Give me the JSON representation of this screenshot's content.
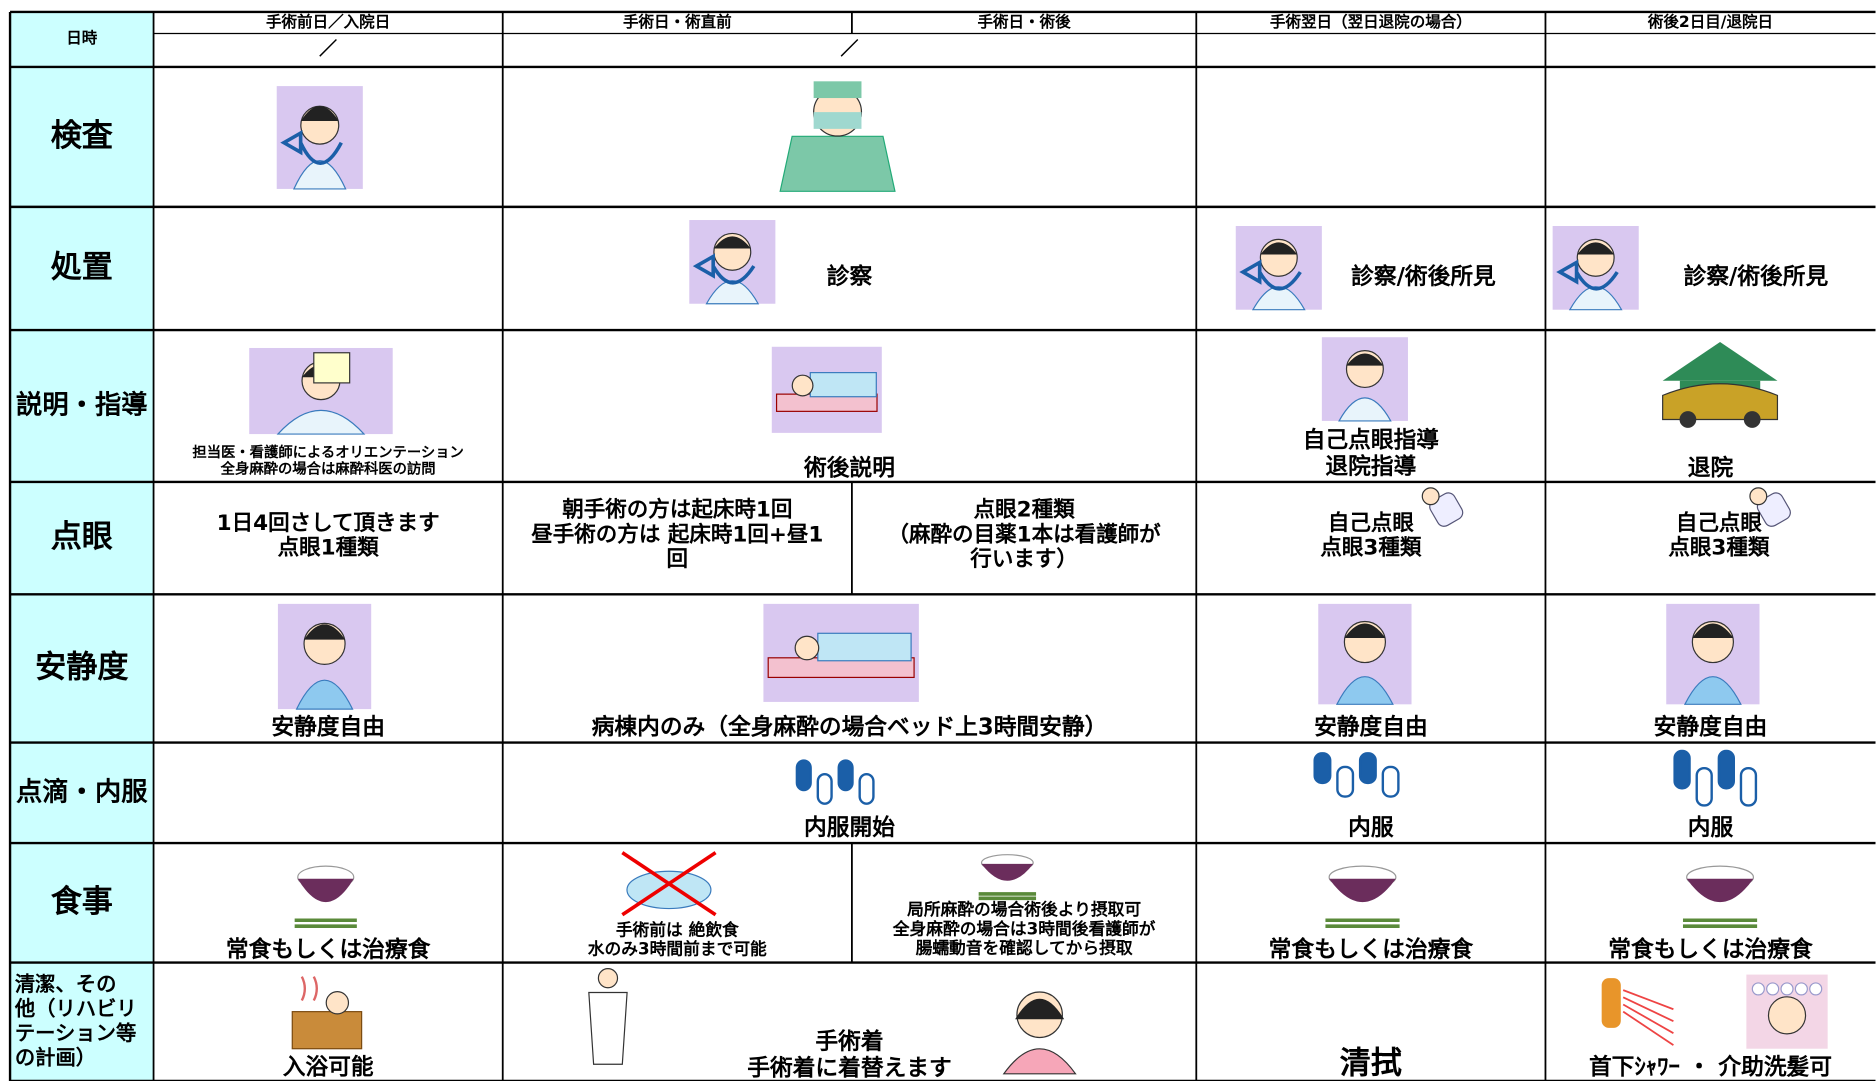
{
  "header": {
    "label": "日時",
    "columns": [
      "手術前日／入院日",
      "手術日・術直前",
      "手術日・術後",
      "手術翌日（翌日退院の場合）",
      "術後2日目/退院日"
    ],
    "dates": [
      "／",
      "／"
    ]
  },
  "rows": [
    {
      "label": [
        "検査"
      ]
    },
    {
      "label": [
        "処置"
      ],
      "cells": [
        [
          "診察"
        ],
        [
          "診察/術後所見"
        ],
        [
          "診察/術後所見"
        ]
      ]
    },
    {
      "label": [
        "説明・指導"
      ],
      "cells": [
        [
          "担当医・看護師によるオリエンテーション",
          "全身麻酔の場合は麻酔科医の訪問"
        ],
        [
          "術後説明"
        ],
        [
          "自己点眼指導",
          "退院指導"
        ],
        [
          "退院"
        ]
      ]
    },
    {
      "label": [
        "点眼"
      ],
      "cells": [
        [
          "1日4回さして頂きます",
          "点眼1種類"
        ],
        [
          "朝手術の方は起床時1回",
          "昼手術の方は 起床時1回+昼1",
          "回"
        ],
        [
          "点眼2種類",
          "（麻酔の目薬1本は看護師が",
          "行います）"
        ],
        [
          "自己点眼",
          "点眼3種類"
        ],
        [
          "自己点眼",
          "点眼3種類"
        ]
      ]
    },
    {
      "label": [
        "安静度"
      ],
      "cells": [
        [
          "安静度自由"
        ],
        [
          "病棟内のみ（全身麻酔の場合ベッド上3時間安静）"
        ],
        [
          "安静度自由"
        ],
        [
          "安静度自由"
        ]
      ]
    },
    {
      "label": [
        "点滴・内服"
      ],
      "cells": [
        [
          "内服開始"
        ],
        [
          "内服"
        ],
        [
          "内服"
        ]
      ]
    },
    {
      "label": [
        "食事"
      ],
      "cells": [
        [
          "常食もしくは治療食"
        ],
        [
          "手術前は 絶飲食",
          "水のみ3時間前まで可能"
        ],
        [
          "局所麻酔の場合術後より摂取可",
          "全身麻酔の場合は3時間後看護師が",
          "腸蠕動音を確認してから摂取"
        ],
        [
          "常食もしくは治療食"
        ],
        [
          "常食もしくは治療食"
        ]
      ]
    },
    {
      "label": [
        "清潔、その",
        "他（リハビリ",
        "テーション等",
        "の計画）"
      ],
      "cells": [
        [
          "入浴可能"
        ],
        [
          "手術着",
          "手術着に着替えます"
        ],
        [
          "清拭"
        ],
        [
          "首下ｼｬﾜｰ ・ 介助洗髪可"
        ]
      ]
    }
  ]
}
